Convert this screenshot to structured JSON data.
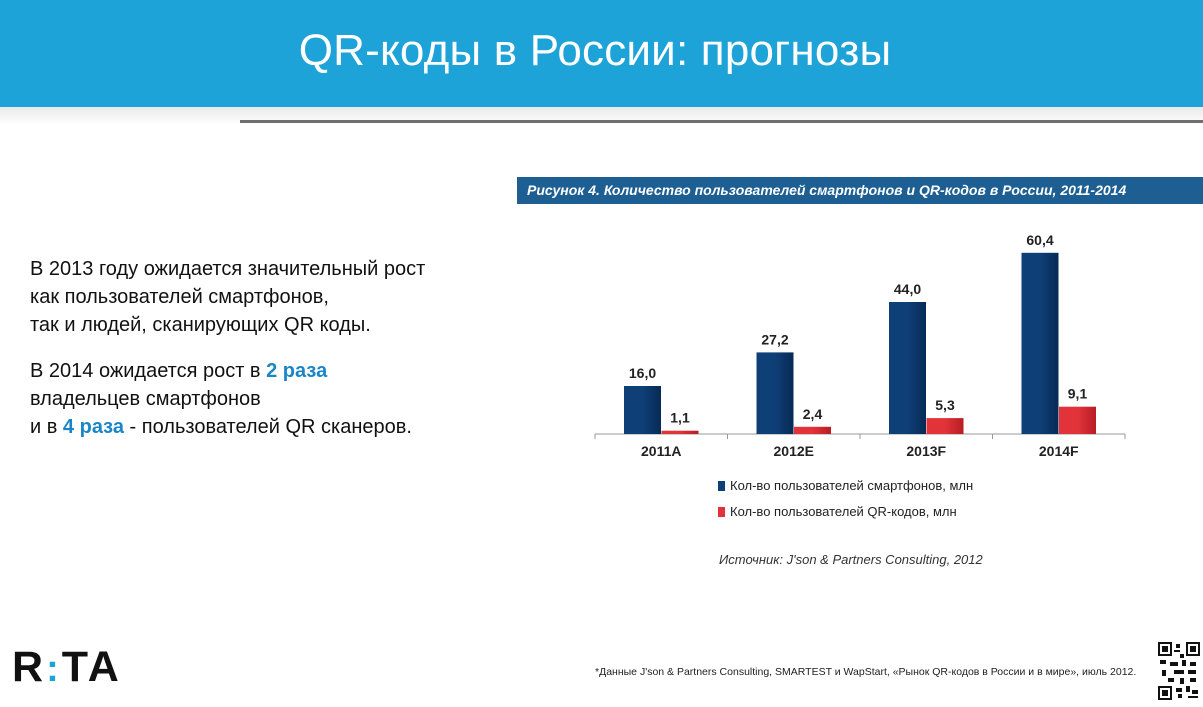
{
  "header": {
    "title": "QR-коды в России: прогнозы"
  },
  "left_text": {
    "p1_line1": "В 2013 году ожидается значительный рост",
    "p1_line2": "как пользователей смартфонов,",
    "p1_line3": "так и людей, сканирующих QR коды.",
    "p2_line1_pre": "В 2014 ожидается рост в ",
    "p2_line1_hl": "2 раза",
    "p2_line2": "владельцев смартфонов",
    "p2_line3_pre": "и в ",
    "p2_line3_hl": "4 раза",
    "p2_line3_post": " - пользователей QR сканеров."
  },
  "chart_data": {
    "type": "bar",
    "title": "Рисунок 4. Количество пользователей смартфонов и QR-кодов в России, 2011-2014",
    "categories": [
      "2011A",
      "2012E",
      "2013F",
      "2014F"
    ],
    "series": [
      {
        "name": "Кол-во пользователей смартфонов, млн",
        "values": [
          16.0,
          27.2,
          44.0,
          60.4
        ],
        "labels": [
          "16,0",
          "27,2",
          "44,0",
          "60,4"
        ],
        "color": "#0f3f77"
      },
      {
        "name": "Кол-во пользователей QR-кодов, млн",
        "values": [
          1.1,
          2.4,
          5.3,
          9.1
        ],
        "labels": [
          "1,1",
          "2,4",
          "5,3",
          "9,1"
        ],
        "color": "#e2333a"
      }
    ],
    "ylim": [
      0,
      65
    ],
    "grid": false,
    "legend_position": "bottom"
  },
  "source": "Источник: J'son & Partners Consulting, 2012",
  "footer": {
    "logo_left": "R",
    "logo_dots": ":",
    "logo_right": "TA",
    "note": "*Данные J'son & Partners Consulting, SMARTEST и WapStart, «Рынок QR-кодов в России и в мире», июль 2012."
  }
}
